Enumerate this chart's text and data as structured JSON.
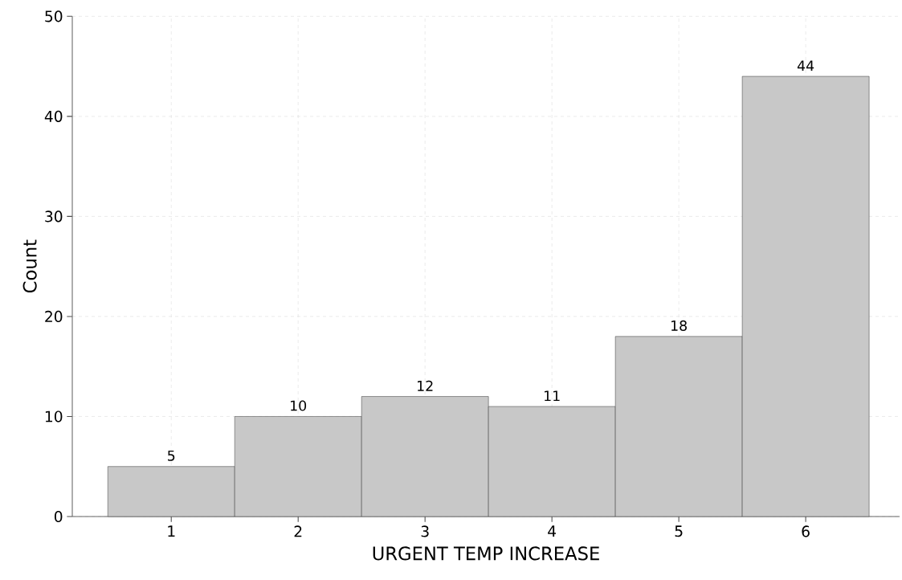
{
  "chart_data": {
    "type": "histogram",
    "xlabel": "URGENT TEMP INCREASE",
    "ylabel": "Count",
    "bins": [
      0.5,
      1.5,
      2.5,
      3.5,
      4.5,
      5.5,
      6.5
    ],
    "values": [
      5,
      10,
      12,
      11,
      18,
      44
    ],
    "color": "#c8c8c8",
    "xlim": [
      0.22,
      6.74
    ],
    "ylim": [
      0,
      50
    ],
    "xticks": [
      1,
      2,
      3,
      4,
      5,
      6
    ],
    "yticks": [
      0,
      10,
      20,
      30,
      40,
      50
    ],
    "grid": true,
    "data_labels": true
  }
}
